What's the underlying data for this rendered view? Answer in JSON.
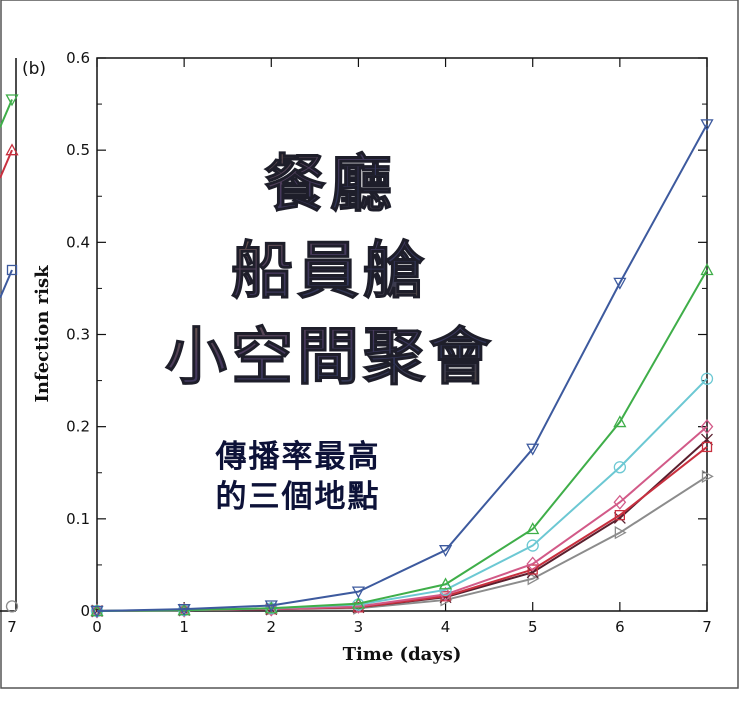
{
  "chart_data": {
    "type": "line",
    "panel_label": "(b)",
    "xlabel": "Time (days)",
    "ylabel": "Infection risk",
    "xlim": [
      0,
      7
    ],
    "ylim": [
      0,
      0.6
    ],
    "x_ticks": [
      "0",
      "1",
      "2",
      "3",
      "4",
      "5",
      "6",
      "7"
    ],
    "y_ticks": [
      "0",
      "0.1",
      "0.2",
      "0.3",
      "0.4",
      "0.5",
      "0.6"
    ],
    "x": [
      0,
      1,
      2,
      3,
      4,
      5,
      6,
      7
    ],
    "series": [
      {
        "color": "#3d5a9e",
        "marker": "triangle-down",
        "values": [
          0,
          0.002,
          0.006,
          0.021,
          0.066,
          0.176,
          0.356,
          0.528
        ]
      },
      {
        "color": "#3fae49",
        "marker": "triangle-up",
        "values": [
          0,
          0.001,
          0.003,
          0.008,
          0.029,
          0.089,
          0.205,
          0.37
        ]
      },
      {
        "color": "#6cc8d3",
        "marker": "circle",
        "values": [
          0,
          0.001,
          0.003,
          0.007,
          0.023,
          0.071,
          0.156,
          0.252
        ]
      },
      {
        "color": "#d25a88",
        "marker": "diamond",
        "values": [
          0,
          0.001,
          0.002,
          0.005,
          0.018,
          0.051,
          0.118,
          0.2
        ]
      },
      {
        "color": "#c8303f",
        "marker": "square",
        "values": [
          0,
          0.001,
          0.002,
          0.004,
          0.016,
          0.045,
          0.104,
          0.178
        ]
      },
      {
        "color": "#5a1f2e",
        "marker": "cross",
        "values": [
          0,
          0.001,
          0.002,
          0.004,
          0.015,
          0.042,
          0.101,
          0.186
        ]
      },
      {
        "color": "#8c8c8c",
        "marker": "triangle-right",
        "values": [
          0,
          0.001,
          0.002,
          0.003,
          0.012,
          0.035,
          0.085,
          0.146
        ]
      }
    ],
    "left_panel_fragment": {
      "x_tick": "7",
      "series": [
        {
          "color": "#3fae49",
          "marker": "triangle-down",
          "value": 0.555
        },
        {
          "color": "#c8303f",
          "marker": "triangle-up",
          "value": 0.5
        },
        {
          "color": "#3d5a9e",
          "marker": "square",
          "value": 0.37
        },
        {
          "color": "#8c8c8c",
          "marker": "circle",
          "value": 0.005
        }
      ]
    }
  },
  "overlay": {
    "headline": [
      "餐廳",
      "船員艙",
      "小空間聚會"
    ],
    "subline": [
      "傳播率最高",
      "的三個地點"
    ]
  }
}
